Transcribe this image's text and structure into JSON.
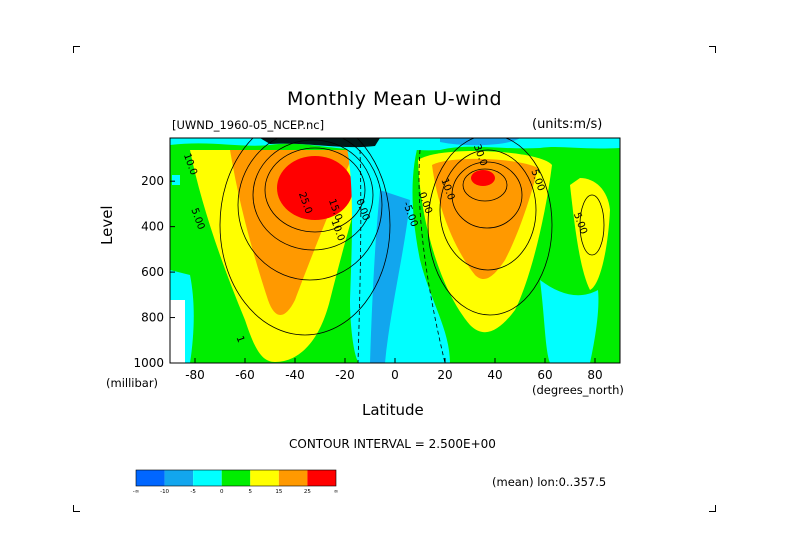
{
  "chart_data": {
    "type": "heatmap",
    "title": "Monthly Mean U-wind",
    "dataset_label": "[UWND_1960-05_NCEP.nc]",
    "units_label": "(units:m/s)",
    "xlabel": "Latitude",
    "x_units_label": "(degrees_north)",
    "ylabel": "Level",
    "y_units_label": "(millibar)",
    "xlim": [
      -90,
      90
    ],
    "ylim": [
      1000,
      10
    ],
    "x_ticks": [
      -80,
      -60,
      -40,
      -20,
      0,
      20,
      40,
      60,
      80
    ],
    "y_ticks": [
      200,
      400,
      600,
      800,
      1000
    ],
    "contour_interval_label": "CONTOUR INTERVAL = 2.500E+00",
    "mean_label": "(mean) lon:0..357.5",
    "colorbar": {
      "colors": [
        "#0066ff",
        "#12a6ee",
        "#00ffff",
        "#00ee00",
        "#ffff00",
        "#ff9900",
        "#ff0000"
      ],
      "labels": [
        "-∞",
        "-10",
        "-5",
        "0",
        "5",
        "15",
        "25",
        "∞"
      ]
    },
    "contour_labels": [
      {
        "text": "10.0",
        "lat": -83,
        "lev": 130
      },
      {
        "text": "5.00",
        "lat": -80,
        "lev": 370
      },
      {
        "text": "25.0",
        "lat": -37,
        "lev": 300
      },
      {
        "text": "15.0",
        "lat": -25,
        "lev": 330
      },
      {
        "text": "10.0",
        "lat": -24,
        "lev": 420
      },
      {
        "text": "0.00",
        "lat": -14,
        "lev": 330
      },
      {
        "text": "-5.00",
        "lat": 5,
        "lev": 350
      },
      {
        "text": "0.00",
        "lat": 11,
        "lev": 300
      },
      {
        "text": "10.0",
        "lat": 20,
        "lev": 240
      },
      {
        "text": "30.0",
        "lat": 33,
        "lev": 90
      },
      {
        "text": "5.00",
        "lat": 56,
        "lev": 200
      },
      {
        "text": "5.00",
        "lat": 73,
        "lev": 390
      },
      {
        "text": "1",
        "lat": -63,
        "lev": 900
      }
    ]
  }
}
